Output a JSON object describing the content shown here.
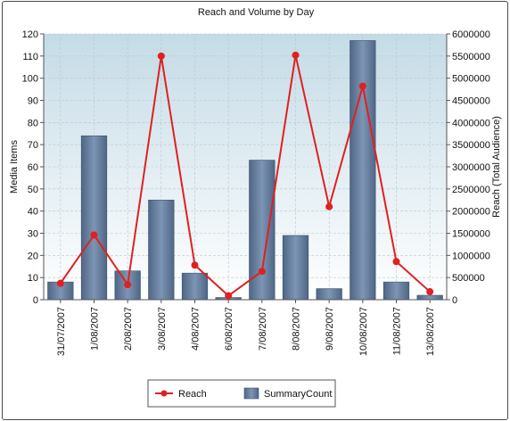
{
  "chart_data": {
    "type": "bar",
    "title": "Reach and Volume by Day",
    "xlabel": "",
    "ylabel": "Media Items",
    "y2label": "Reach (Total Audience)",
    "categories": [
      "31/07/2007",
      "1/08/2007",
      "2/08/2007",
      "3/08/2007",
      "4/08/2007",
      "6/08/2007",
      "7/08/2007",
      "8/08/2007",
      "9/08/2007",
      "10/08/2007",
      "11/08/2007",
      "13/08/2007"
    ],
    "ylim": [
      0,
      120
    ],
    "y2lim": [
      0,
      6000000
    ],
    "yticks": [
      "0",
      "10",
      "20",
      "30",
      "40",
      "50",
      "60",
      "70",
      "80",
      "90",
      "100",
      "110",
      "120"
    ],
    "y2ticks": [
      "0",
      "500000",
      "1000000",
      "1500000",
      "2000000",
      "2500000",
      "3000000",
      "3500000",
      "4000000",
      "4500000",
      "5000000",
      "5500000",
      "6000000"
    ],
    "grid": true,
    "legend_position": "bottom",
    "series": [
      {
        "name": "SummaryCount",
        "type": "bar",
        "axis": "left",
        "color": "#6f86a6",
        "values": [
          8,
          74,
          13,
          45,
          12,
          1,
          63,
          29,
          5,
          117,
          8,
          2
        ]
      },
      {
        "name": "Reach",
        "type": "line",
        "axis": "right",
        "color": "#e02020",
        "values": [
          370000,
          1460000,
          340000,
          5500000,
          780000,
          90000,
          640000,
          5520000,
          2100000,
          4820000,
          860000,
          180000
        ]
      }
    ]
  }
}
